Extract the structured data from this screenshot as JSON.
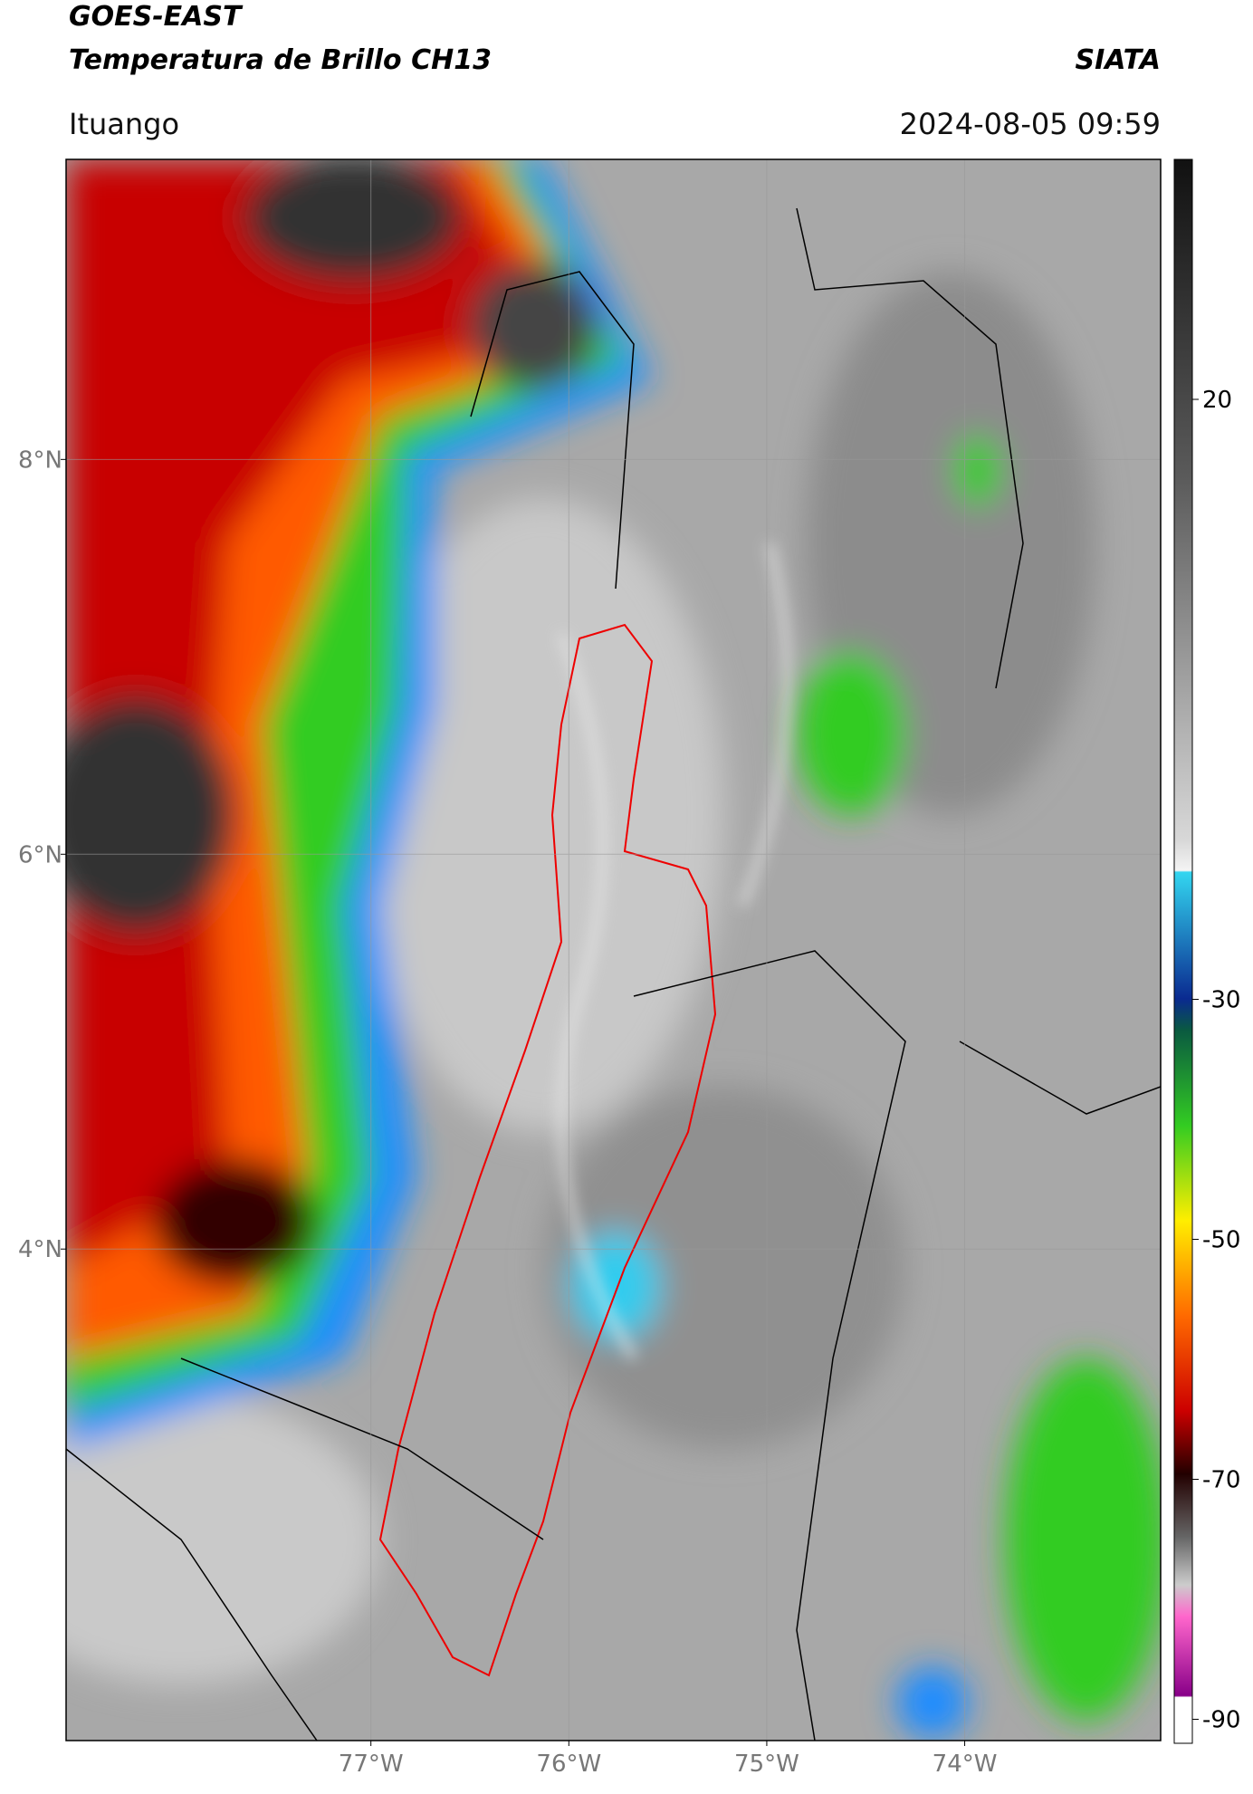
{
  "header": {
    "title_line1": "GOES-EAST",
    "title_line2": "Temperatura de Brillo CH13",
    "brand": "SIATA",
    "region": "Ituango",
    "datetime": "2024-08-05 09:59"
  },
  "map": {
    "lonlim": [
      -78.54,
      -73.01
    ],
    "latlim": [
      1.51,
      9.52
    ],
    "lon_ticks": [
      {
        "value": -77,
        "label": "77°W"
      },
      {
        "value": -76,
        "label": "76°W"
      },
      {
        "value": -75,
        "label": "75°W"
      },
      {
        "value": -74,
        "label": "74°W"
      }
    ],
    "lat_ticks": [
      {
        "value": 8,
        "label": "8°N"
      },
      {
        "value": 6,
        "label": "6°N"
      },
      {
        "value": 4,
        "label": "4°N"
      }
    ]
  },
  "colorbar": {
    "lim": [
      -92,
      40
    ],
    "ticks": [
      20,
      -30,
      -50,
      -70,
      -90
    ]
  }
}
